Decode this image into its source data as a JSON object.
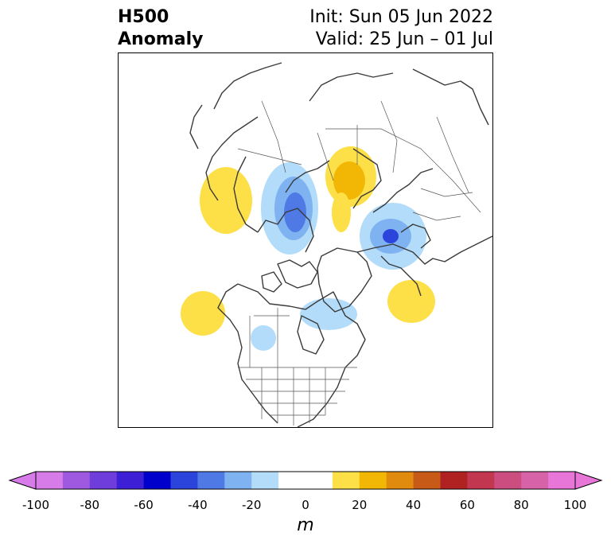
{
  "title": {
    "left_line1": "H500",
    "left_line2": "Anomaly",
    "right_line1": "Init: Sun 05 Jun 2022",
    "right_line2": "Valid: 25 Jun – 01 Jul"
  },
  "colorbar": {
    "units": "m",
    "ticks": [
      "-100",
      "-80",
      "-60",
      "-40",
      "-20",
      "0",
      "20",
      "40",
      "60",
      "80",
      "100"
    ],
    "colors": [
      "#d67be8",
      "#9e59e0",
      "#6f3ddc",
      "#3d20d6",
      "#0000cc",
      "#2b45dc",
      "#4f7ae6",
      "#7fb2f0",
      "#b2dcfa",
      "#ffffff",
      "#ffffff",
      "#fde047",
      "#f2b705",
      "#e08a0e",
      "#c85a18",
      "#b02222",
      "#c23650",
      "#cc4e80",
      "#d862a8",
      "#e876d8"
    ],
    "min": -100,
    "max": 100
  },
  "anomalies": [
    {
      "name": "positive-anomaly-nw",
      "value": 15
    },
    {
      "name": "negative-anomaly-center",
      "value": -45
    },
    {
      "name": "positive-anomaly-north",
      "value": 25
    },
    {
      "name": "negative-anomaly-east",
      "value": -45
    },
    {
      "name": "positive-anomaly-pacific",
      "value": 15
    },
    {
      "name": "negative-anomaly-hudson",
      "value": -15
    },
    {
      "name": "positive-anomaly-atlantic",
      "value": 15
    },
    {
      "name": "negative-anomaly-us",
      "value": -15
    }
  ]
}
